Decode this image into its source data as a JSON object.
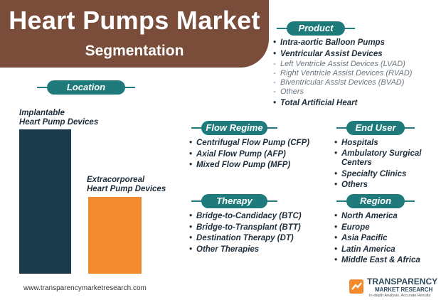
{
  "header": {
    "title": "Heart Pumps Market",
    "subtitle": "Segmentation"
  },
  "location": {
    "tag": "Location",
    "bars": [
      {
        "label_line1": "Implantable",
        "label_line2": "Heart Pump Devices",
        "color": "#1b3a4b",
        "relative_size": 1.0
      },
      {
        "label_line1": "Extracorporeal",
        "label_line2": "Heart Pump Devices",
        "color": "#f28a30",
        "relative_size": 0.53
      }
    ]
  },
  "product": {
    "tag": "Product",
    "items": [
      "Intra-aortic Balloon Pumps",
      "Ventricular Assist Devices",
      "Total Artificial Heart"
    ],
    "sub_items": [
      "Left Ventricle Assist Devices (LVAD)",
      "Right Ventricle Assist Devices (RVAD)",
      "Biventricular Assist Devices (BVAD)",
      "Others"
    ]
  },
  "flow_regime": {
    "tag": "Flow Regime",
    "items": [
      "Centrifugal Flow Pump (CFP)",
      "Axial Flow Pump (AFP)",
      "Mixed Flow Pump (MFP)"
    ]
  },
  "end_user": {
    "tag": "End User",
    "items": [
      "Hospitals",
      "Ambulatory Surgical Centers",
      "Specialty Clinics",
      "Others"
    ]
  },
  "therapy": {
    "tag": "Therapy",
    "items": [
      "Bridge-to-Candidacy (BTC)",
      "Bridge-to-Transplant (BTT)",
      "Destination Therapy (DT)",
      "Other Therapies"
    ]
  },
  "region": {
    "tag": "Region",
    "items": [
      "North America",
      "Europe",
      "Asia Pacific",
      "Latin America",
      "Middle East & Africa"
    ]
  },
  "footer": {
    "url": "www.transparencymarketresearch.com",
    "logo_name": "TRANSPARENCY",
    "logo_sub": "MARKET RESEARCH",
    "logo_tagline": "In-depth Analysis. Accurate Results"
  },
  "colors": {
    "title_bg": "#7a4c3a",
    "tag_bg": "#1f7b7b",
    "bar_primary": "#1b3a4b",
    "bar_secondary": "#f28a30"
  }
}
